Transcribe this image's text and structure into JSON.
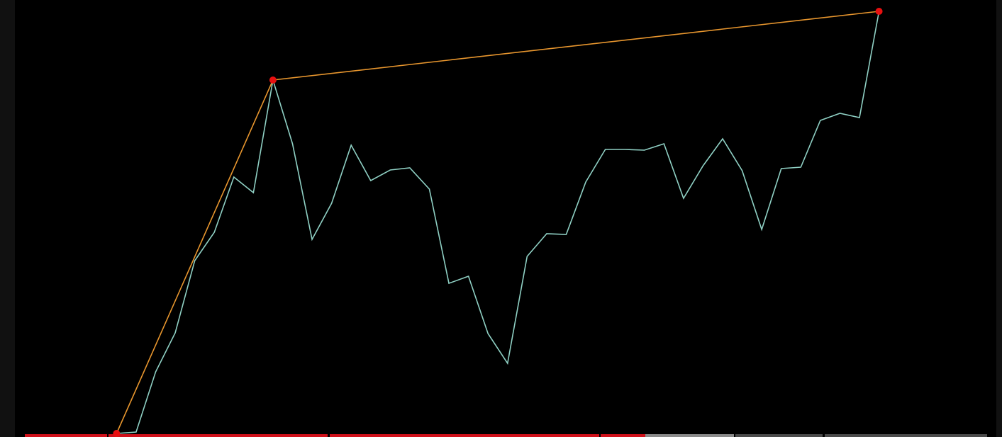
{
  "chart_data": {
    "type": "line",
    "x": [
      0,
      1,
      2,
      3,
      4,
      5,
      6,
      7,
      8,
      9,
      10,
      11,
      12,
      13,
      14,
      15,
      16,
      17,
      18,
      19,
      20,
      21,
      22,
      23,
      24,
      25,
      26,
      27,
      28,
      29,
      30,
      31,
      32,
      33,
      34,
      35,
      36,
      37,
      38,
      39
    ],
    "series": [
      {
        "color": "#8fd0c4",
        "values": [
          0,
          2,
          87,
          142,
          244,
          284,
          362,
          340,
          499,
          409,
          274,
          325,
          407,
          357,
          372,
          375,
          345,
          212,
          222,
          141,
          99,
          250,
          282,
          281,
          355,
          401,
          401,
          400,
          409,
          332,
          378,
          416,
          371,
          288,
          374,
          376,
          442,
          452,
          446,
          596
        ]
      },
      {
        "color": "#e8962e",
        "marker_color": "#e81010",
        "x": [
          0,
          8,
          39
        ],
        "values": [
          0,
          499,
          596
        ]
      }
    ],
    "xlim": [
      -5.2,
      45
    ],
    "ylim": [
      0,
      612
    ],
    "grid": false
  }
}
